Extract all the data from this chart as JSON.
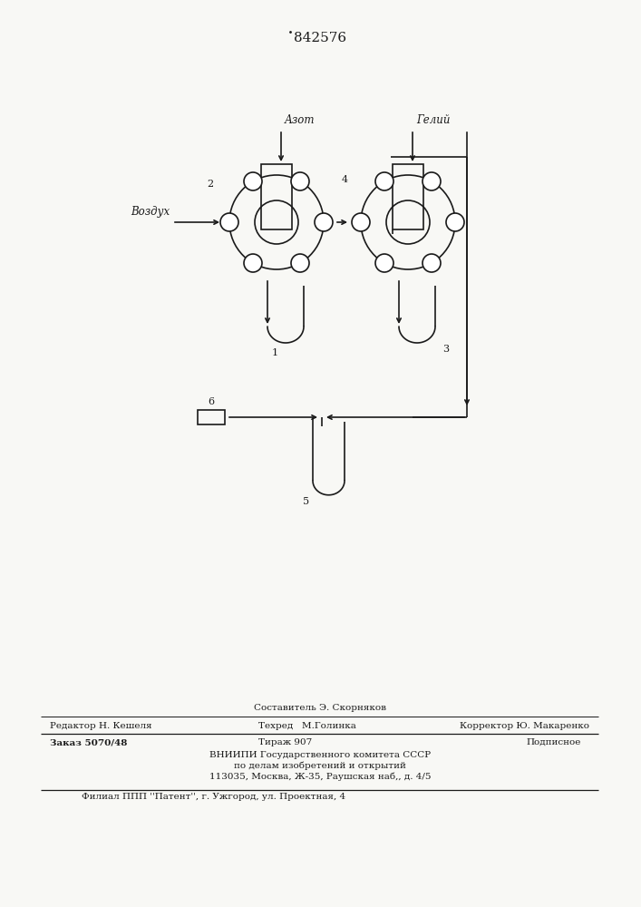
{
  "title": "842576",
  "bg_color": "#f8f8f5",
  "line_color": "#1a1a1a",
  "line_width": 1.2,
  "label_azot": "Азот",
  "label_heliy": "Гелий",
  "label_vozdukh": "Воздух",
  "label_2": "2",
  "label_4": "4",
  "label_6": "6",
  "label_1": "1",
  "label_3": "3",
  "label_5": "5",
  "footer_line1": "Составитель Э. Скорняков",
  "footer_line2_left": "Редактор Н. Кешеля",
  "footer_line2_mid": "Техред   М.Голинка",
  "footer_line2_right": "Корректор Ю. Макаренко",
  "footer_line3_left": "Заказ 5070/48",
  "footer_line3_mid": "Тираж 907",
  "footer_line3_right": "Подписное",
  "footer_line4": "ВНИИПИ Государственного комитета СССР",
  "footer_line5": "по делам изобретений и открытий",
  "footer_line6": "113035, Москва, Ж-35, Раушская наб,, д. 4/5",
  "footer_line7": "Филиал ППП ''Патент'', г. Ужгород, ул. Проектная, 4"
}
